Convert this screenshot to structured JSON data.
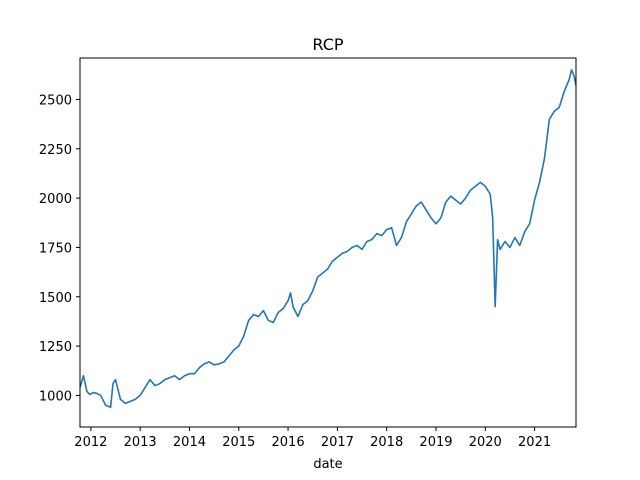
{
  "chart_data": {
    "type": "line",
    "title": "RCP",
    "xlabel": "date",
    "ylabel": "",
    "xlim": [
      2011.78,
      2021.84
    ],
    "ylim": [
      840,
      2710
    ],
    "x_ticks": [
      2012,
      2013,
      2014,
      2015,
      2016,
      2017,
      2018,
      2019,
      2020,
      2021
    ],
    "x_tick_labels": [
      "2012",
      "2013",
      "2014",
      "2015",
      "2016",
      "2017",
      "2018",
      "2019",
      "2020",
      "2021"
    ],
    "y_ticks": [
      1000,
      1250,
      1500,
      1750,
      2000,
      2250,
      2500
    ],
    "y_tick_labels": [
      "1000",
      "1250",
      "1500",
      "1750",
      "2000",
      "2250",
      "2500"
    ],
    "grid": false,
    "legend": "none",
    "line_color": "#1f77b4",
    "series": [
      {
        "x": [
          2011.78,
          2011.85,
          2011.92,
          2011.98,
          2012.05,
          2012.12,
          2012.2,
          2012.3,
          2012.4,
          2012.45,
          2012.5,
          2012.56,
          2012.6,
          2012.7,
          2012.8,
          2012.9,
          2013.0,
          2013.1,
          2013.2,
          2013.3,
          2013.4,
          2013.5,
          2013.6,
          2013.7,
          2013.8,
          2013.9,
          2014.0,
          2014.1,
          2014.2,
          2014.3,
          2014.4,
          2014.5,
          2014.6,
          2014.7,
          2014.8,
          2014.9,
          2015.0,
          2015.1,
          2015.2,
          2015.3,
          2015.4,
          2015.5,
          2015.6,
          2015.7,
          2015.8,
          2015.9,
          2016.0,
          2016.05,
          2016.1,
          2016.2,
          2016.3,
          2016.4,
          2016.5,
          2016.6,
          2016.7,
          2016.8,
          2016.9,
          2017.0,
          2017.1,
          2017.2,
          2017.3,
          2017.4,
          2017.5,
          2017.6,
          2017.7,
          2017.8,
          2017.9,
          2018.0,
          2018.1,
          2018.2,
          2018.3,
          2018.4,
          2018.5,
          2018.6,
          2018.7,
          2018.8,
          2018.9,
          2019.0,
          2019.1,
          2019.2,
          2019.3,
          2019.4,
          2019.5,
          2019.6,
          2019.7,
          2019.8,
          2019.9,
          2020.0,
          2020.05,
          2020.1,
          2020.15,
          2020.2,
          2020.25,
          2020.3,
          2020.35,
          2020.4,
          2020.5,
          2020.6,
          2020.7,
          2020.8,
          2020.9,
          2021.0,
          2021.1,
          2021.2,
          2021.3,
          2021.4,
          2021.5,
          2021.6,
          2021.7,
          2021.75,
          2021.8,
          2021.84
        ],
        "y": [
          1040,
          1100,
          1020,
          1005,
          1015,
          1010,
          1000,
          950,
          940,
          1060,
          1080,
          1020,
          980,
          960,
          970,
          980,
          1000,
          1040,
          1080,
          1050,
          1060,
          1080,
          1090,
          1100,
          1080,
          1100,
          1110,
          1110,
          1140,
          1160,
          1170,
          1155,
          1160,
          1170,
          1200,
          1230,
          1250,
          1300,
          1380,
          1410,
          1400,
          1430,
          1380,
          1370,
          1420,
          1440,
          1480,
          1520,
          1450,
          1400,
          1460,
          1480,
          1530,
          1600,
          1620,
          1640,
          1680,
          1700,
          1720,
          1730,
          1750,
          1760,
          1740,
          1780,
          1790,
          1820,
          1810,
          1840,
          1850,
          1760,
          1800,
          1880,
          1920,
          1960,
          1980,
          1940,
          1900,
          1870,
          1900,
          1980,
          2010,
          1990,
          1970,
          2000,
          2040,
          2060,
          2080,
          2060,
          2040,
          2020,
          1900,
          1450,
          1790,
          1740,
          1760,
          1780,
          1750,
          1800,
          1760,
          1830,
          1870,
          1990,
          2080,
          2200,
          2400,
          2440,
          2460,
          2540,
          2600,
          2650,
          2620,
          2570
        ]
      }
    ]
  }
}
